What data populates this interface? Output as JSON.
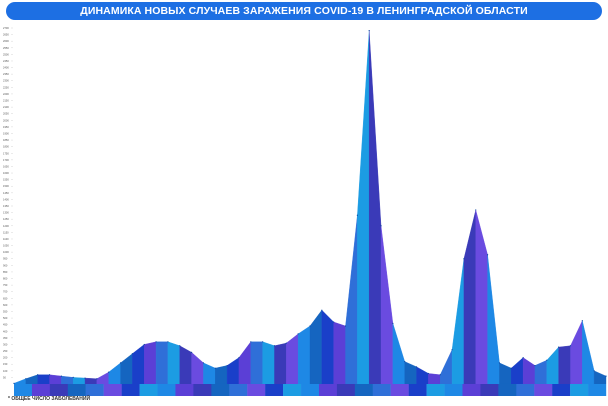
{
  "title": "ДИНАМИКА НОВЫХ СЛУЧАЕВ ЗАРАЖЕНИЯ COVID-19 В ЛЕНИНГРАДСКОЙ ОБЛАСТИ",
  "footnote": "* ОБЩЕЕ ЧИСЛО ЗАБОЛЕВАНИЙ",
  "colors": {
    "title_bg": "#1d6fe3",
    "band_palette": [
      "#1e88e5",
      "#1565c0",
      "#1a3fc9",
      "#5b3fd6",
      "#2f6fd8",
      "#1c9ce3",
      "#3a3ab8",
      "#6a4be0"
    ]
  },
  "chart_data": {
    "type": "area",
    "title": "ДИНАМИКА НОВЫХ СЛУЧАЕВ ЗАРАЖЕНИЯ COVID-19 В ЛЕНИНГРАДСКОЙ ОБЛАСТИ",
    "ylim": [
      0,
      2700
    ],
    "ytick_step": 50,
    "grid": false,
    "legend": "none",
    "x_bands": 33,
    "series": [
      {
        "values": [
          5,
          40,
          70,
          70,
          60,
          50,
          45,
          40,
          90,
          160,
          230,
          300,
          320,
          320,
          290,
          240,
          160,
          120,
          140,
          200,
          320,
          320,
          290,
          310,
          380,
          440,
          560,
          470,
          440,
          1280,
          2680,
          1200,
          460,
          170,
          130,
          80,
          70,
          260,
          950,
          1320,
          980,
          160,
          120,
          200,
          140,
          180,
          280,
          290,
          480,
          100,
          60
        ]
      }
    ]
  }
}
